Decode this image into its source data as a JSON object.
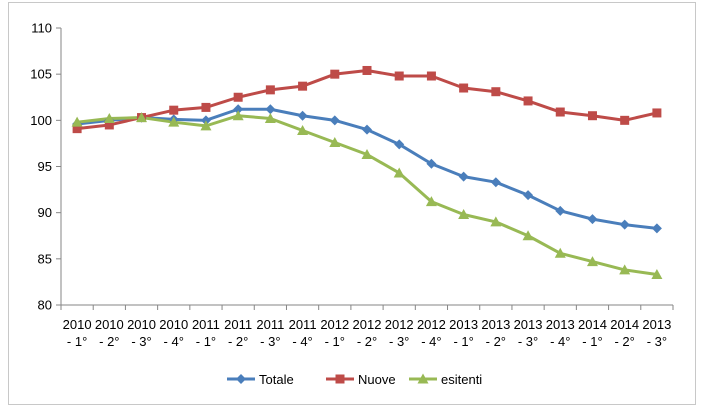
{
  "chart_data": {
    "type": "line",
    "categories": [
      [
        "2010",
        "- 1°"
      ],
      [
        "2010",
        "- 2°"
      ],
      [
        "2010",
        "- 3°"
      ],
      [
        "2010",
        "- 4°"
      ],
      [
        "2011",
        "- 1°"
      ],
      [
        "2011",
        "- 2°"
      ],
      [
        "2011",
        "- 3°"
      ],
      [
        "2011",
        "- 4°"
      ],
      [
        "2012",
        "- 1°"
      ],
      [
        "2012",
        "- 2°"
      ],
      [
        "2012",
        "- 3°"
      ],
      [
        "2012",
        "- 4°"
      ],
      [
        "2013",
        "- 1°"
      ],
      [
        "2013",
        "- 2°"
      ],
      [
        "2013",
        "- 3°"
      ],
      [
        "2013",
        "- 4°"
      ],
      [
        "2014",
        "- 1°"
      ],
      [
        "2014",
        "- 2°"
      ],
      [
        "2013",
        "- 3°"
      ]
    ],
    "ylim": [
      80,
      110
    ],
    "yticks": [
      80,
      85,
      90,
      95,
      100,
      105,
      110
    ],
    "grid": false,
    "legend_position": "bottom",
    "series": [
      {
        "name": "Totale",
        "color": "#4a7ebb",
        "marker": "diamond",
        "values": [
          99.6,
          100.0,
          100.3,
          100.1,
          100.0,
          101.2,
          101.2,
          100.5,
          100.0,
          99.0,
          97.4,
          95.3,
          93.9,
          93.3,
          91.9,
          90.2,
          89.3,
          88.7,
          88.3
        ]
      },
      {
        "name": "Nuove",
        "color": "#be4b48",
        "marker": "square",
        "values": [
          99.1,
          99.5,
          100.3,
          101.1,
          101.4,
          102.5,
          103.3,
          103.7,
          105.0,
          105.4,
          104.8,
          104.8,
          103.5,
          103.1,
          102.1,
          100.9,
          100.5,
          100.0,
          100.8
        ]
      },
      {
        "name": "esitenti",
        "color": "#98b954",
        "marker": "triangle",
        "values": [
          99.8,
          100.2,
          100.3,
          99.8,
          99.4,
          100.5,
          100.2,
          98.9,
          97.6,
          96.3,
          94.3,
          91.2,
          89.8,
          89.0,
          87.5,
          85.6,
          84.7,
          83.8,
          83.3
        ]
      }
    ]
  }
}
